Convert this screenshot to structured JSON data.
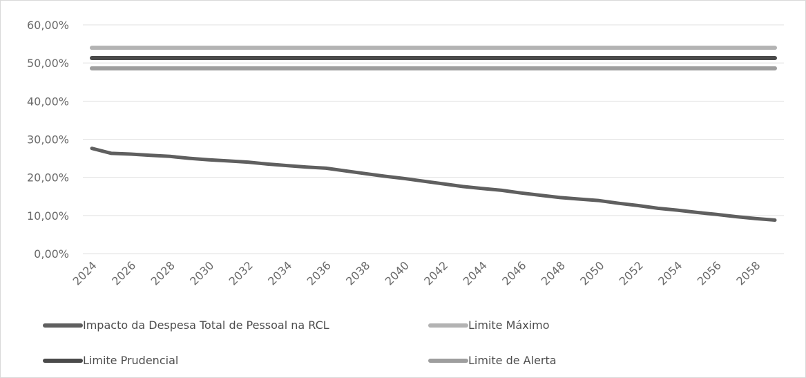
{
  "chart_data": {
    "type": "line",
    "title": "",
    "xlabel": "",
    "ylabel": "",
    "ylim": [
      0,
      60
    ],
    "y_ticks": [
      "0,00%",
      "10,00%",
      "20,00%",
      "30,00%",
      "40,00%",
      "50,00%",
      "60,00%"
    ],
    "x_tick_labels": [
      "2024",
      "2026",
      "2028",
      "2030",
      "2032",
      "2034",
      "2036",
      "2038",
      "2040",
      "2042",
      "2044",
      "2046",
      "2048",
      "2050",
      "2052",
      "2054",
      "2056",
      "2058"
    ],
    "x": [
      2024,
      2025,
      2026,
      2027,
      2028,
      2029,
      2030,
      2031,
      2032,
      2033,
      2034,
      2035,
      2036,
      2037,
      2038,
      2039,
      2040,
      2041,
      2042,
      2043,
      2044,
      2045,
      2046,
      2047,
      2048,
      2049,
      2050,
      2051,
      2052,
      2053,
      2054,
      2055,
      2056,
      2057,
      2058,
      2059
    ],
    "grid": true,
    "legend_position": "bottom",
    "series": [
      {
        "name": "Impacto da Despesa Total de Pessoal na RCL",
        "color": "#5f5f5f",
        "values": [
          27.6,
          26.3,
          26.1,
          25.8,
          25.5,
          25.0,
          24.6,
          24.3,
          24.0,
          23.5,
          23.1,
          22.7,
          22.4,
          21.7,
          21.0,
          20.3,
          19.7,
          19.0,
          18.3,
          17.6,
          17.1,
          16.6,
          15.9,
          15.3,
          14.7,
          14.3,
          13.9,
          13.2,
          12.6,
          11.9,
          11.4,
          10.8,
          10.3,
          9.7,
          9.2,
          8.8
        ]
      },
      {
        "name": "Limite Máximo",
        "color": "#b3b3b3",
        "values": [
          54,
          54,
          54,
          54,
          54,
          54,
          54,
          54,
          54,
          54,
          54,
          54,
          54,
          54,
          54,
          54,
          54,
          54,
          54,
          54,
          54,
          54,
          54,
          54,
          54,
          54,
          54,
          54,
          54,
          54,
          54,
          54,
          54,
          54,
          54,
          54
        ]
      },
      {
        "name": "Limite Prudencial",
        "color": "#4a4a4a",
        "values": [
          51.3,
          51.3,
          51.3,
          51.3,
          51.3,
          51.3,
          51.3,
          51.3,
          51.3,
          51.3,
          51.3,
          51.3,
          51.3,
          51.3,
          51.3,
          51.3,
          51.3,
          51.3,
          51.3,
          51.3,
          51.3,
          51.3,
          51.3,
          51.3,
          51.3,
          51.3,
          51.3,
          51.3,
          51.3,
          51.3,
          51.3,
          51.3,
          51.3,
          51.3,
          51.3,
          51.3
        ]
      },
      {
        "name": "Limite de Alerta",
        "color": "#9e9e9e",
        "values": [
          48.6,
          48.6,
          48.6,
          48.6,
          48.6,
          48.6,
          48.6,
          48.6,
          48.6,
          48.6,
          48.6,
          48.6,
          48.6,
          48.6,
          48.6,
          48.6,
          48.6,
          48.6,
          48.6,
          48.6,
          48.6,
          48.6,
          48.6,
          48.6,
          48.6,
          48.6,
          48.6,
          48.6,
          48.6,
          48.6,
          48.6,
          48.6,
          48.6,
          48.6,
          48.6,
          48.6
        ]
      }
    ]
  }
}
